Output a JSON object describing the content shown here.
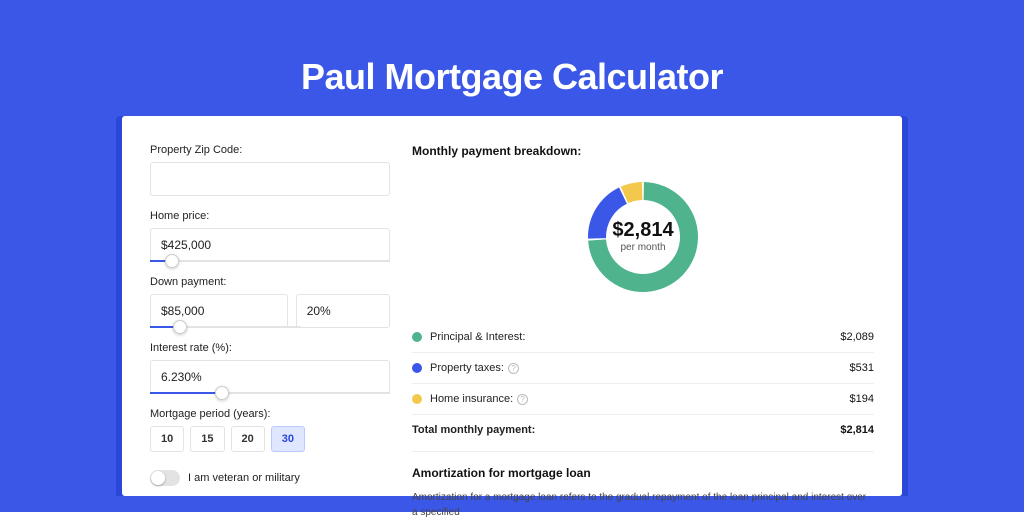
{
  "colors": {
    "background": "#3a57e8",
    "panel": "#ffffff",
    "accent": "#3a57e8",
    "border": "#e3e3e3",
    "principal": "#4fb38d",
    "taxes": "#3a57e8",
    "insurance": "#f2c94c"
  },
  "title": "Paul Mortgage Calculator",
  "form": {
    "zip": {
      "label": "Property Zip Code:",
      "value": ""
    },
    "home_price": {
      "label": "Home price:",
      "value": "$425,000",
      "slider_pct": 9
    },
    "down_payment": {
      "label": "Down payment:",
      "value": "$85,000",
      "pct": "20%",
      "slider_pct": 20
    },
    "interest_rate": {
      "label": "Interest rate (%):",
      "value": "6.230%",
      "slider_pct": 30
    },
    "mortgage_period": {
      "label": "Mortgage period (years):",
      "options": [
        "10",
        "15",
        "20",
        "30"
      ],
      "selected": "30"
    },
    "veteran": {
      "label": "I am veteran or military",
      "on": false
    }
  },
  "breakdown": {
    "title": "Monthly payment breakdown:",
    "donut": {
      "amount": "$2,814",
      "sublabel": "per month",
      "segments": [
        {
          "key": "principal",
          "color": "#4fb38d",
          "value": 2089
        },
        {
          "key": "taxes",
          "color": "#3a57e8",
          "value": 531
        },
        {
          "key": "insurance",
          "color": "#f2c94c",
          "value": 194
        }
      ],
      "total": 2814,
      "radius": 55,
      "thickness": 18
    },
    "rows": [
      {
        "label": "Principal & Interest:",
        "value": "$2,089",
        "color": "#4fb38d",
        "info": false
      },
      {
        "label": "Property taxes:",
        "value": "$531",
        "color": "#3a57e8",
        "info": true
      },
      {
        "label": "Home insurance:",
        "value": "$194",
        "color": "#f2c94c",
        "info": true
      }
    ],
    "total": {
      "label": "Total monthly payment:",
      "value": "$2,814"
    }
  },
  "amortization": {
    "title": "Amortization for mortgage loan",
    "text": "Amortization for a mortgage loan refers to the gradual repayment of the loan principal and interest over a specified"
  }
}
